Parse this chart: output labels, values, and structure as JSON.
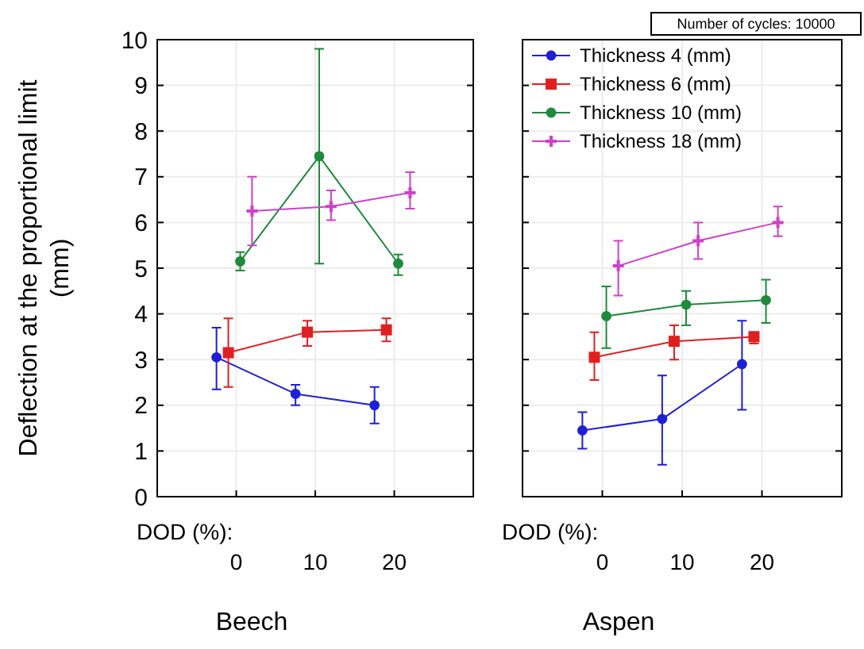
{
  "chart_data": [
    {
      "type": "line",
      "xlabel": "Beech",
      "ylabel": "Deflection at the proportional limit (mm)",
      "annotations": [
        "DOD (%):"
      ],
      "xlim": [
        -10,
        30
      ],
      "xticks": [
        0,
        10,
        20
      ],
      "ylim": [
        0,
        10
      ],
      "yticks": [
        0,
        1,
        2,
        3,
        4,
        5,
        6,
        7,
        8,
        9,
        10
      ],
      "grid": true,
      "legend": false,
      "series": [
        {
          "color": "#1f1fd8",
          "marker": "circle",
          "x": [
            -2.5,
            7.5,
            17.5
          ],
          "values": [
            3.05,
            2.25,
            2.0
          ],
          "errors": [
            [
              2.35,
              3.7
            ],
            [
              2.0,
              2.45
            ],
            [
              1.6,
              2.4
            ]
          ]
        },
        {
          "color": "#e02020",
          "marker": "square",
          "x": [
            -1,
            9,
            19
          ],
          "values": [
            3.15,
            3.6,
            3.65
          ],
          "errors": [
            [
              2.4,
              3.9
            ],
            [
              3.3,
              3.85
            ],
            [
              3.4,
              3.9
            ]
          ]
        },
        {
          "color": "#1e8a3c",
          "marker": "circle",
          "x": [
            0.5,
            10.5,
            20.5
          ],
          "values": [
            5.15,
            7.45,
            5.1
          ],
          "errors": [
            [
              4.95,
              5.35
            ],
            [
              5.1,
              9.8
            ],
            [
              4.85,
              5.3
            ]
          ]
        },
        {
          "color": "#d040c8",
          "marker": "cross",
          "x": [
            2,
            12,
            22
          ],
          "values": [
            6.25,
            6.35,
            6.65
          ],
          "errors": [
            [
              5.5,
              7.0
            ],
            [
              6.05,
              6.7
            ],
            [
              6.3,
              7.1
            ]
          ]
        }
      ]
    },
    {
      "type": "line",
      "xlabel": "Aspen",
      "annotations": [
        "DOD (%):",
        "Number of cycles: 10000"
      ],
      "xlim": [
        -10,
        30
      ],
      "xticks": [
        0,
        10,
        20
      ],
      "ylim": [
        0,
        10
      ],
      "yticks": [
        0,
        1,
        2,
        3,
        4,
        5,
        6,
        7,
        8,
        9,
        10
      ],
      "tick_labels": "x",
      "grid": true,
      "legend": "top left",
      "series": [
        {
          "name": "Thickness 4 (mm)",
          "color": "#1f1fd8",
          "marker": "circle",
          "x": [
            -2.5,
            7.5,
            17.5
          ],
          "values": [
            1.45,
            1.7,
            2.9
          ],
          "errors": [
            [
              1.05,
              1.85
            ],
            [
              0.7,
              2.65
            ],
            [
              1.9,
              3.85
            ]
          ]
        },
        {
          "name": "Thickness 6 (mm)",
          "color": "#e02020",
          "marker": "square",
          "x": [
            -1,
            9,
            19
          ],
          "values": [
            3.05,
            3.4,
            3.5
          ],
          "errors": [
            [
              2.55,
              3.6
            ],
            [
              3.0,
              3.75
            ],
            [
              3.35,
              3.6
            ]
          ]
        },
        {
          "name": "Thickness 10 (mm)",
          "color": "#1e8a3c",
          "marker": "circle",
          "x": [
            0.5,
            10.5,
            20.5
          ],
          "values": [
            3.95,
            4.2,
            4.3
          ],
          "errors": [
            [
              3.25,
              4.6
            ],
            [
              3.75,
              4.5
            ],
            [
              3.8,
              4.75
            ]
          ]
        },
        {
          "name": "Thickness 18 (mm)",
          "color": "#d040c8",
          "marker": "cross",
          "x": [
            2,
            12,
            22
          ],
          "values": [
            5.05,
            5.6,
            6.0
          ],
          "errors": [
            [
              4.4,
              5.6
            ],
            [
              5.2,
              6.0
            ],
            [
              5.7,
              6.35
            ]
          ]
        }
      ]
    }
  ]
}
